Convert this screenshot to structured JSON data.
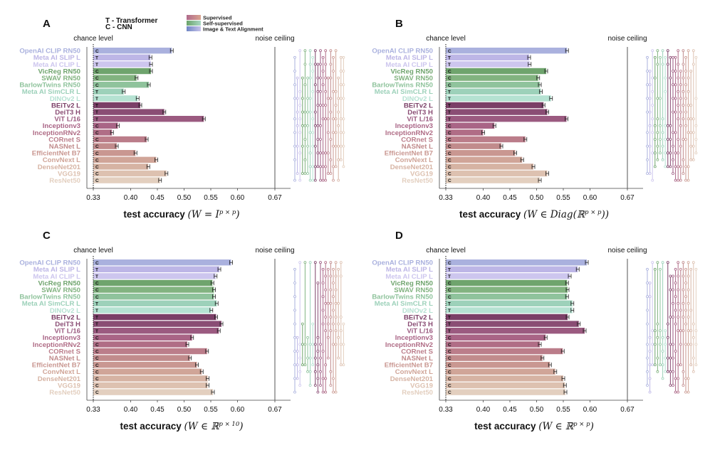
{
  "legend": {
    "transformer": "T - Transformer",
    "cnn": "C - CNN",
    "categories": [
      {
        "label": "Supervised",
        "color_a": "#b06a8c",
        "color_b": "#d9a48f"
      },
      {
        "label": "Self-supervised",
        "color_a": "#6aa36a",
        "color_b": "#a9d8c4"
      },
      {
        "label": "Image & Text Alignment",
        "color_a": "#6f86c4",
        "color_b": "#c7c2ea"
      }
    ]
  },
  "models": [
    {
      "name": "OpenAI CLIP RN50",
      "arch": "C",
      "color": "#aab1de"
    },
    {
      "name": "Meta AI SLIP L",
      "arch": "T",
      "color": "#bdb6e6"
    },
    {
      "name": "Meta AI CLIP L",
      "arch": "T",
      "color": "#cdc6ee"
    },
    {
      "name": "VicReg RN50",
      "arch": "C",
      "color": "#6fa46d"
    },
    {
      "name": "SWAV RN50",
      "arch": "C",
      "color": "#82b380"
    },
    {
      "name": "BarlowTwins RN50",
      "arch": "C",
      "color": "#8fc39c"
    },
    {
      "name": "Meta AI SimCLR L",
      "arch": "T",
      "color": "#9dd1ba"
    },
    {
      "name": "DINOv2 L",
      "arch": "T",
      "color": "#b5e2d2"
    },
    {
      "name": "BEiTv2 L",
      "arch": "T",
      "color": "#7b3f67"
    },
    {
      "name": "DeiT3 H",
      "arch": "T",
      "color": "#8a4d74"
    },
    {
      "name": "ViT L/16",
      "arch": "T",
      "color": "#9b5a80"
    },
    {
      "name": "Inceptionv3",
      "arch": "C",
      "color": "#a96486"
    },
    {
      "name": "InceptionRNv2",
      "arch": "C",
      "color": "#b06d86"
    },
    {
      "name": "CORnet S",
      "arch": "C",
      "color": "#bb7d8a"
    },
    {
      "name": "NASNet L",
      "arch": "C",
      "color": "#c18b8c"
    },
    {
      "name": "EfficientNet B7",
      "arch": "C",
      "color": "#c99791"
    },
    {
      "name": "ConvNext L",
      "arch": "C",
      "color": "#d0a598"
    },
    {
      "name": "DenseNet201",
      "arch": "C",
      "color": "#d6b3a3"
    },
    {
      "name": "VGG19",
      "arch": "C",
      "color": "#ddc1b0"
    },
    {
      "name": "ResNet50",
      "arch": "C",
      "color": "#e3cfbf"
    }
  ],
  "chart_data": [
    {
      "type": "bar",
      "panel": "A",
      "title_main": "test accuracy ",
      "title_math": "(W = I",
      "title_sub": "p × p",
      "title_end": ")",
      "chance_label": "chance level",
      "ceiling_label": "noise ceiling",
      "xlim": [
        0.33,
        0.67
      ],
      "xticks": [
        "0.33",
        "0.40",
        "0.45",
        "0.50",
        "0.55",
        "0.60",
        "0.67"
      ],
      "values": [
        0.477,
        0.437,
        0.438,
        0.438,
        0.411,
        0.434,
        0.387,
        0.413,
        0.418,
        0.463,
        0.537,
        0.376,
        0.365,
        0.43,
        0.374,
        0.409,
        0.448,
        0.433,
        0.467,
        0.455
      ]
    },
    {
      "type": "bar",
      "panel": "B",
      "title_main": "test accuracy ",
      "title_math": "(W ∈ Diag(ℝ",
      "title_sub": "p × p",
      "title_end": "))",
      "chance_label": "chance level",
      "ceiling_label": "noise ceiling",
      "xlim": [
        0.33,
        0.67
      ],
      "xticks": [
        "0.33",
        "0.40",
        "0.45",
        "0.50",
        "0.55",
        "0.60",
        "0.67"
      ],
      "values": [
        0.557,
        0.486,
        0.487,
        0.518,
        0.503,
        0.506,
        0.508,
        0.527,
        0.513,
        0.52,
        0.556,
        0.421,
        0.4,
        0.479,
        0.434,
        0.46,
        0.473,
        0.494,
        0.52,
        0.506
      ]
    },
    {
      "type": "bar",
      "panel": "C",
      "title_main": "test accuracy ",
      "title_math": "(W ∈ ℝ",
      "title_sub": "p × 10",
      "title_end": ")",
      "chance_label": "chance level",
      "ceiling_label": "noise ceiling",
      "xlim": [
        0.33,
        0.67
      ],
      "xticks": [
        "0.33",
        "0.40",
        "0.45",
        "0.50",
        "0.55",
        "0.60",
        "0.67"
      ],
      "values": [
        0.588,
        0.566,
        0.559,
        0.553,
        0.556,
        0.556,
        0.561,
        0.551,
        0.56,
        0.57,
        0.565,
        0.515,
        0.506,
        0.543,
        0.511,
        0.524,
        0.533,
        0.544,
        0.544,
        0.554
      ]
    },
    {
      "type": "bar",
      "panel": "D",
      "title_main": "test accuracy ",
      "title_math": "(W ∈ ℝ",
      "title_sub": "p × p",
      "title_end": ")",
      "chance_label": "chance level",
      "ceiling_label": "noise ceiling",
      "xlim": [
        0.33,
        0.67
      ],
      "xticks": [
        "0.33",
        "0.40",
        "0.45",
        "0.50",
        "0.55",
        "0.60",
        "0.67"
      ],
      "values": [
        0.594,
        0.577,
        0.562,
        0.557,
        0.558,
        0.557,
        0.567,
        0.567,
        0.558,
        0.579,
        0.59,
        0.517,
        0.506,
        0.549,
        0.511,
        0.525,
        0.535,
        0.55,
        0.553,
        0.554
      ]
    }
  ]
}
